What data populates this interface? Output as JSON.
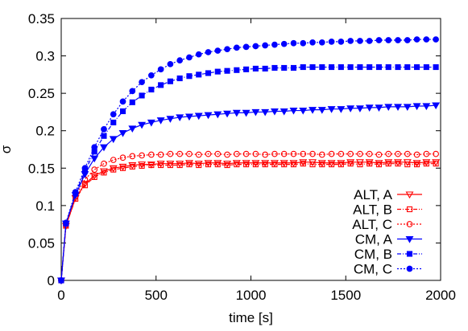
{
  "chart_data": {
    "type": "line",
    "title": "",
    "xlabel": "time [s]",
    "ylabel": "σ",
    "xlim": [
      0,
      2000
    ],
    "ylim": [
      0,
      0.35
    ],
    "xticks": [
      0,
      500,
      1000,
      1500,
      2000
    ],
    "xtick_labels": [
      "0",
      "500",
      "1000",
      "1500",
      "2000"
    ],
    "yticks": [
      0,
      0.05,
      0.1,
      0.15,
      0.2,
      0.25,
      0.3,
      0.35
    ],
    "ytick_labels": [
      "0",
      "0.05",
      "0.1",
      "0.15",
      "0.2",
      "0.25",
      "0.3",
      "0.35"
    ],
    "grid": false,
    "legend_position": "bottom-right",
    "x": [
      0,
      25,
      75,
      125,
      175,
      225,
      275,
      325,
      375,
      425,
      475,
      525,
      575,
      625,
      675,
      725,
      775,
      825,
      875,
      925,
      975,
      1025,
      1075,
      1125,
      1175,
      1225,
      1275,
      1325,
      1375,
      1425,
      1475,
      1525,
      1575,
      1625,
      1675,
      1725,
      1775,
      1825,
      1875,
      1925,
      1975
    ],
    "series": [
      {
        "name": "ALT, A",
        "color": "#ff0000",
        "marker": "triangle-down-open",
        "line": "solid",
        "values": [
          0,
          0.073,
          0.11,
          0.129,
          0.14,
          0.146,
          0.15,
          0.152,
          0.154,
          0.155,
          0.155,
          0.156,
          0.156,
          0.156,
          0.157,
          0.156,
          0.157,
          0.157,
          0.156,
          0.157,
          0.157,
          0.157,
          0.157,
          0.157,
          0.157,
          0.157,
          0.158,
          0.158,
          0.157,
          0.157,
          0.157,
          0.158,
          0.158,
          0.158,
          0.157,
          0.158,
          0.158,
          0.158,
          0.157,
          0.158,
          0.158
        ]
      },
      {
        "name": "ALT, B",
        "color": "#ff0000",
        "marker": "square-open",
        "line": "dash-dot",
        "values": [
          0,
          0.073,
          0.109,
          0.127,
          0.138,
          0.144,
          0.148,
          0.15,
          0.152,
          0.153,
          0.154,
          0.154,
          0.154,
          0.154,
          0.155,
          0.154,
          0.155,
          0.155,
          0.154,
          0.155,
          0.155,
          0.155,
          0.155,
          0.155,
          0.155,
          0.155,
          0.156,
          0.155,
          0.155,
          0.155,
          0.155,
          0.156,
          0.155,
          0.156,
          0.155,
          0.156,
          0.156,
          0.155,
          0.155,
          0.156,
          0.156
        ]
      },
      {
        "name": "ALT, C",
        "color": "#ff0000",
        "marker": "circle-open",
        "line": "dotted",
        "values": [
          0,
          0.074,
          0.113,
          0.135,
          0.148,
          0.156,
          0.161,
          0.164,
          0.166,
          0.167,
          0.168,
          0.168,
          0.169,
          0.169,
          0.169,
          0.168,
          0.169,
          0.169,
          0.168,
          0.169,
          0.169,
          0.169,
          0.168,
          0.169,
          0.169,
          0.169,
          0.169,
          0.169,
          0.168,
          0.169,
          0.169,
          0.169,
          0.169,
          0.169,
          0.168,
          0.169,
          0.169,
          0.169,
          0.168,
          0.169,
          0.169
        ]
      },
      {
        "name": "CM, A",
        "color": "#0000ff",
        "marker": "triangle-down-filled",
        "line": "solid",
        "values": [
          0,
          0.076,
          0.114,
          0.142,
          0.163,
          0.178,
          0.189,
          0.197,
          0.203,
          0.208,
          0.211,
          0.214,
          0.216,
          0.218,
          0.219,
          0.22,
          0.221,
          0.222,
          0.223,
          0.224,
          0.224,
          0.225,
          0.225,
          0.226,
          0.226,
          0.227,
          0.227,
          0.228,
          0.228,
          0.229,
          0.229,
          0.23,
          0.23,
          0.231,
          0.231,
          0.232,
          0.232,
          0.232,
          0.233,
          0.233,
          0.234
        ]
      },
      {
        "name": "CM, B",
        "color": "#0000ff",
        "marker": "square-filled",
        "line": "dash-dot",
        "values": [
          0,
          0.076,
          0.116,
          0.146,
          0.172,
          0.193,
          0.211,
          0.226,
          0.238,
          0.247,
          0.255,
          0.261,
          0.266,
          0.27,
          0.273,
          0.275,
          0.277,
          0.279,
          0.28,
          0.281,
          0.282,
          0.283,
          0.283,
          0.284,
          0.284,
          0.284,
          0.285,
          0.285,
          0.285,
          0.285,
          0.285,
          0.285,
          0.285,
          0.285,
          0.285,
          0.285,
          0.285,
          0.285,
          0.285,
          0.285,
          0.285
        ]
      },
      {
        "name": "CM, C",
        "color": "#0000ff",
        "marker": "circle-filled",
        "line": "dotted",
        "values": [
          0,
          0.077,
          0.118,
          0.15,
          0.178,
          0.202,
          0.222,
          0.239,
          0.253,
          0.265,
          0.274,
          0.282,
          0.289,
          0.294,
          0.298,
          0.302,
          0.305,
          0.307,
          0.309,
          0.311,
          0.312,
          0.313,
          0.314,
          0.315,
          0.316,
          0.317,
          0.317,
          0.318,
          0.318,
          0.319,
          0.319,
          0.32,
          0.32,
          0.32,
          0.321,
          0.321,
          0.321,
          0.321,
          0.322,
          0.322,
          0.322
        ]
      }
    ]
  }
}
